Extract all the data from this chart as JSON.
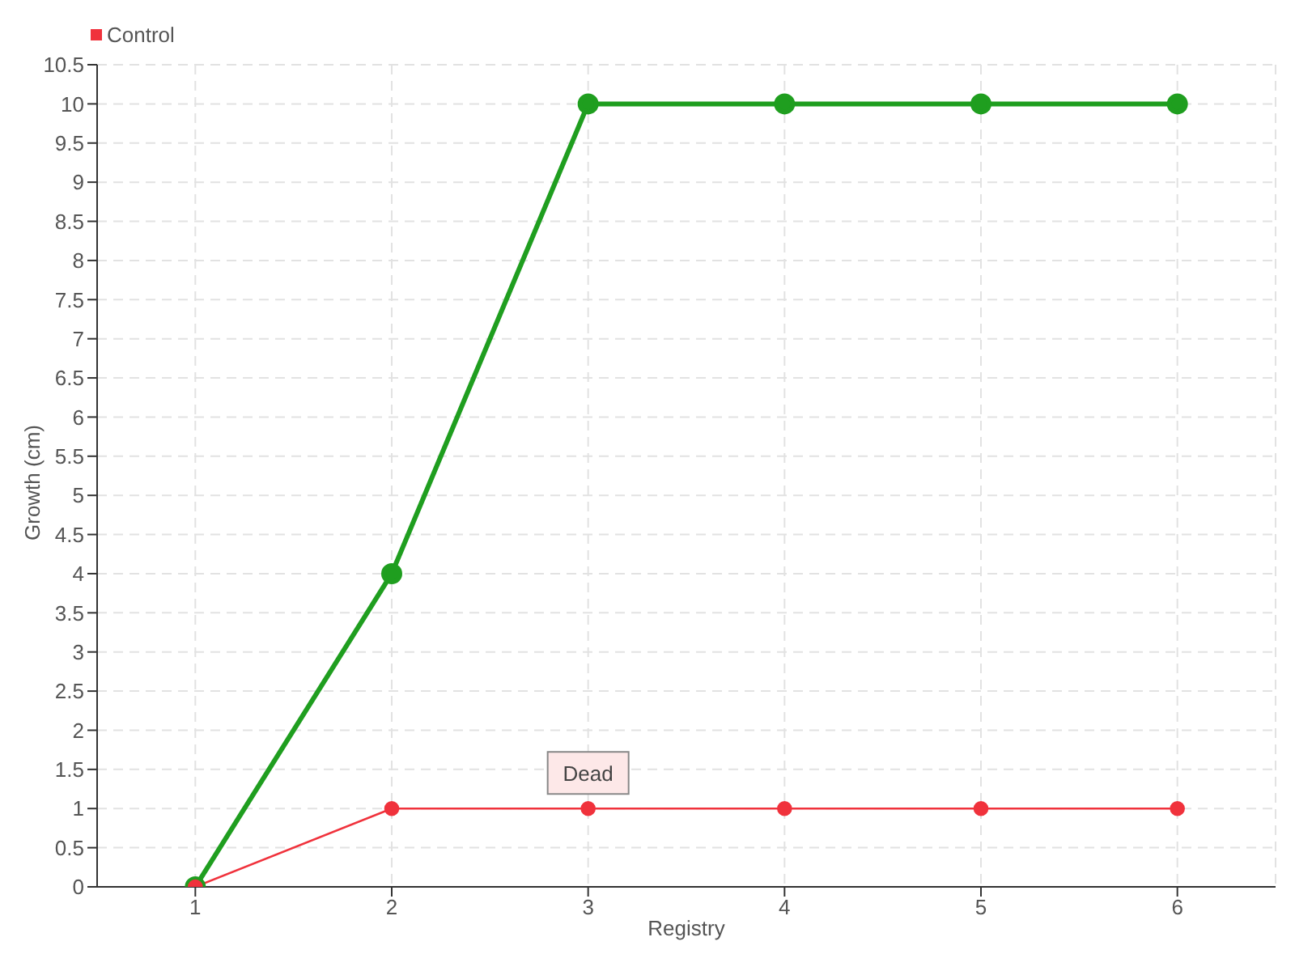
{
  "chart_data": {
    "type": "line",
    "xlabel": "Registry",
    "ylabel": "Growth (cm)",
    "x": [
      1,
      2,
      3,
      4,
      5,
      6
    ],
    "series": [
      {
        "color": "#1f9e1f",
        "values": [
          0,
          4,
          10,
          10,
          10,
          10
        ]
      },
      {
        "name": "Control",
        "color": "#f0323c",
        "values": [
          0,
          1,
          1,
          1,
          1,
          1
        ]
      }
    ],
    "xlim": [
      0.5,
      6.5
    ],
    "xticks": [
      1,
      2,
      3,
      4,
      5,
      6
    ],
    "ylim": [
      0,
      10.5
    ],
    "yticks": [
      0,
      0.5,
      1,
      1.5,
      2,
      2.5,
      3,
      3.5,
      4,
      4.5,
      5,
      5.5,
      6,
      6.5,
      7,
      7.5,
      8,
      8.5,
      9,
      9.5,
      10,
      10.5
    ],
    "annotations": [
      {
        "text": "Dead",
        "x": 3,
        "y": 1
      }
    ],
    "grid": true,
    "legend": "top left",
    "marker": "circle",
    "line_style": "solid"
  }
}
